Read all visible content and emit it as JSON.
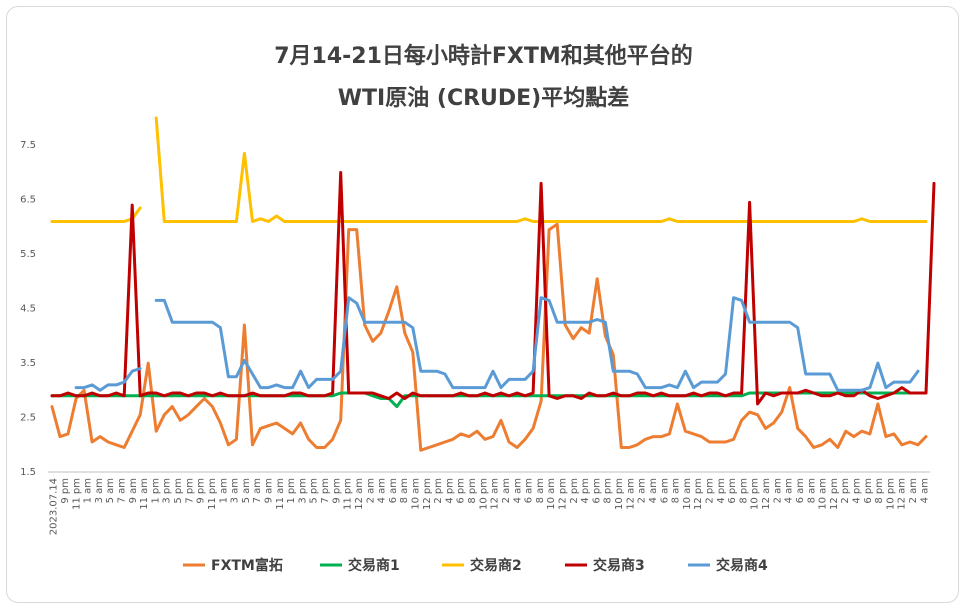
{
  "chart_data": {
    "type": "line",
    "title": "7月14-21日每小時計FXTM和其他平台的",
    "subtitle": "WTI原油 (CRUDE)平均點差",
    "ylim": [
      1.5,
      8.0
    ],
    "yticks": [
      1.5,
      2.5,
      3.5,
      4.5,
      5.5,
      6.5,
      7.5
    ],
    "xlabel": "",
    "ylabel": "",
    "grid": false,
    "legend_position": "bottom",
    "x_tick_labels": [
      "2023.07.14",
      "9 pm",
      "11 pm",
      "1 am",
      "3 am",
      "5 am",
      "7 am",
      "9 am",
      "11 am",
      "1 pm",
      "3 pm",
      "5 pm",
      "7 pm",
      "9 pm",
      "11 pm",
      "1 am",
      "3 am",
      "5 am",
      "7 am",
      "9 am",
      "11 am",
      "1 pm",
      "3 pm",
      "5 pm",
      "7 pm",
      "9 pm",
      "11 pm",
      "12 am",
      "2 am",
      "4 am",
      "6 am",
      "8 am",
      "10 am",
      "12 pm",
      "2 pm",
      "4 pm",
      "6 pm",
      "8 pm",
      "10 pm",
      "12 am",
      "2 am",
      "4 am",
      "6 am",
      "8 am",
      "10 am",
      "12 pm",
      "2 pm",
      "4 pm",
      "6 pm",
      "8 pm",
      "10 pm",
      "12 am",
      "2 am",
      "4 am",
      "6 am",
      "8 am",
      "10 am",
      "12 pm",
      "2 pm",
      "4 pm",
      "6 pm",
      "8 pm",
      "10 pm",
      "12 am",
      "2 am",
      "4 am",
      "6 am",
      "8 am",
      "10 am",
      "12 pm",
      "2 pm",
      "4 pm",
      "6 pm",
      "8 pm",
      "10 pm",
      "12 am",
      "2 am",
      "4 am"
    ],
    "series": [
      {
        "name": "FXTM富拓",
        "color": "#ed7d31",
        "values": [
          2.7,
          2.15,
          2.2,
          2.85,
          3.0,
          2.05,
          2.15,
          2.05,
          2.0,
          1.95,
          2.25,
          2.55,
          3.5,
          2.25,
          2.55,
          2.7,
          2.45,
          2.55,
          2.7,
          2.85,
          2.7,
          2.4,
          2.0,
          2.1,
          4.2,
          2.0,
          2.3,
          2.35,
          2.4,
          2.3,
          2.2,
          2.4,
          2.1,
          1.95,
          1.95,
          2.1,
          2.45,
          5.95,
          5.95,
          4.2,
          3.9,
          4.05,
          4.45,
          4.9,
          4.05,
          3.7,
          1.9,
          1.95,
          2.0,
          2.05,
          2.1,
          2.2,
          2.15,
          2.25,
          2.1,
          2.15,
          2.45,
          2.05,
          1.95,
          2.1,
          2.3,
          2.8,
          5.95,
          6.05,
          4.2,
          3.95,
          4.15,
          4.05,
          5.05,
          4.0,
          3.65,
          1.95,
          1.95,
          2.0,
          2.1,
          2.15,
          2.15,
          2.2,
          2.75,
          2.25,
          2.2,
          2.15,
          2.05,
          2.05,
          2.05,
          2.1,
          2.45,
          2.6,
          2.55,
          2.3,
          2.4,
          2.6,
          3.05,
          2.3,
          2.15,
          1.95,
          2.0,
          2.1,
          1.95,
          2.25,
          2.15,
          2.25,
          2.2,
          2.75,
          2.15,
          2.2,
          2.0,
          2.05,
          2.0,
          2.15
        ]
      },
      {
        "name": "交易商1",
        "color": "#00b050",
        "values": [
          2.9,
          2.9,
          2.9,
          2.9,
          2.9,
          2.9,
          2.9,
          2.9,
          2.9,
          2.9,
          2.9,
          2.9,
          2.9,
          2.9,
          2.9,
          2.9,
          2.9,
          2.9,
          2.9,
          2.9,
          2.9,
          2.9,
          2.9,
          2.9,
          2.9,
          2.9,
          2.9,
          2.9,
          2.9,
          2.9,
          2.9,
          2.9,
          2.9,
          2.9,
          2.9,
          2.9,
          2.95,
          2.95,
          2.95,
          2.95,
          2.9,
          2.85,
          2.85,
          2.7,
          2.9,
          2.9,
          2.9,
          2.9,
          2.9,
          2.9,
          2.9,
          2.9,
          2.9,
          2.9,
          2.9,
          2.9,
          2.9,
          2.9,
          2.9,
          2.9,
          2.9,
          2.9,
          2.9,
          2.9,
          2.9,
          2.9,
          2.9,
          2.9,
          2.9,
          2.9,
          2.9,
          2.9,
          2.9,
          2.9,
          2.9,
          2.9,
          2.9,
          2.9,
          2.9,
          2.9,
          2.9,
          2.9,
          2.9,
          2.9,
          2.9,
          2.9,
          2.9,
          2.95,
          2.95,
          2.95,
          2.95,
          2.95,
          2.95,
          2.95,
          2.95,
          2.95,
          2.95,
          2.95,
          2.95,
          2.95,
          2.95,
          2.95,
          2.95,
          2.95,
          2.95,
          2.95,
          2.95,
          2.95,
          2.95,
          2.95
        ]
      },
      {
        "name": "交易商2",
        "color": "#ffc000",
        "values": [
          6.1,
          6.1,
          6.1,
          6.1,
          6.1,
          6.1,
          6.1,
          6.1,
          6.1,
          6.1,
          6.15,
          6.35,
          null,
          8.0,
          6.1,
          6.1,
          6.1,
          6.1,
          6.1,
          6.1,
          6.1,
          6.1,
          6.1,
          6.1,
          7.35,
          6.1,
          6.15,
          6.1,
          6.2,
          6.1,
          6.1,
          6.1,
          6.1,
          6.1,
          6.1,
          6.1,
          6.1,
          6.1,
          6.1,
          6.1,
          6.1,
          6.1,
          6.1,
          6.1,
          6.1,
          6.1,
          6.1,
          6.1,
          6.1,
          6.1,
          6.1,
          6.1,
          6.1,
          6.1,
          6.1,
          6.1,
          6.1,
          6.1,
          6.1,
          6.15,
          6.1,
          6.1,
          6.1,
          6.1,
          6.1,
          6.1,
          6.1,
          6.1,
          6.1,
          6.1,
          6.1,
          6.1,
          6.1,
          6.1,
          6.1,
          6.1,
          6.1,
          6.15,
          6.1,
          6.1,
          6.1,
          6.1,
          6.1,
          6.1,
          6.1,
          6.1,
          6.1,
          6.1,
          6.1,
          6.1,
          6.1,
          6.1,
          6.1,
          6.1,
          6.1,
          6.1,
          6.1,
          6.1,
          6.1,
          6.1,
          6.1,
          6.15,
          6.1,
          6.1,
          6.1,
          6.1,
          6.1,
          6.1,
          6.1,
          6.1
        ]
      },
      {
        "name": "交易商3",
        "color": "#c00000",
        "values": [
          2.9,
          2.9,
          2.95,
          2.9,
          2.9,
          2.95,
          2.9,
          2.9,
          2.95,
          2.9,
          6.4,
          2.9,
          2.95,
          2.95,
          2.9,
          2.95,
          2.95,
          2.9,
          2.95,
          2.95,
          2.9,
          2.95,
          2.9,
          2.9,
          2.9,
          2.95,
          2.9,
          2.9,
          2.9,
          2.9,
          2.95,
          2.95,
          2.9,
          2.9,
          2.9,
          2.95,
          7.0,
          2.95,
          2.95,
          2.95,
          2.95,
          2.9,
          2.85,
          2.95,
          2.85,
          2.95,
          2.9,
          2.9,
          2.9,
          2.9,
          2.9,
          2.95,
          2.9,
          2.9,
          2.95,
          2.9,
          2.95,
          2.9,
          2.95,
          2.9,
          2.95,
          6.8,
          2.9,
          2.85,
          2.9,
          2.9,
          2.85,
          2.95,
          2.9,
          2.9,
          2.95,
          2.9,
          2.9,
          2.95,
          2.95,
          2.9,
          2.95,
          2.9,
          2.9,
          2.9,
          2.95,
          2.9,
          2.95,
          2.95,
          2.9,
          2.95,
          2.95,
          6.45,
          2.75,
          2.95,
          2.9,
          2.95,
          2.95,
          2.95,
          3.0,
          2.95,
          2.9,
          2.9,
          2.95,
          2.9,
          2.9,
          3.0,
          2.9,
          2.85,
          2.9,
          2.95,
          3.05,
          2.95,
          2.95,
          2.95,
          6.8
        ]
      },
      {
        "name": "交易商4",
        "color": "#5b9bd5",
        "values": [
          null,
          null,
          null,
          3.05,
          3.05,
          3.1,
          3.0,
          3.1,
          3.1,
          3.15,
          3.35,
          3.4,
          null,
          4.65,
          4.65,
          4.25,
          4.25,
          4.25,
          4.25,
          4.25,
          4.25,
          4.15,
          3.25,
          3.25,
          3.55,
          3.3,
          3.05,
          3.05,
          3.1,
          3.05,
          3.05,
          3.35,
          3.05,
          3.2,
          3.2,
          3.2,
          3.35,
          4.7,
          4.6,
          4.25,
          4.25,
          4.25,
          4.25,
          4.25,
          4.25,
          4.15,
          3.35,
          3.35,
          3.35,
          3.3,
          3.05,
          3.05,
          3.05,
          3.05,
          3.05,
          3.35,
          3.05,
          3.2,
          3.2,
          3.2,
          3.35,
          4.7,
          4.65,
          4.25,
          4.25,
          4.25,
          4.25,
          4.25,
          4.3,
          4.25,
          3.35,
          3.35,
          3.35,
          3.3,
          3.05,
          3.05,
          3.05,
          3.1,
          3.05,
          3.35,
          3.05,
          3.15,
          3.15,
          3.15,
          3.3,
          4.7,
          4.65,
          4.25,
          4.25,
          4.25,
          4.25,
          4.25,
          4.25,
          4.15,
          3.3,
          3.3,
          3.3,
          3.3,
          3.0,
          3.0,
          3.0,
          3.0,
          3.05,
          3.5,
          3.05,
          3.15,
          3.15,
          3.15,
          3.35
        ]
      }
    ]
  }
}
